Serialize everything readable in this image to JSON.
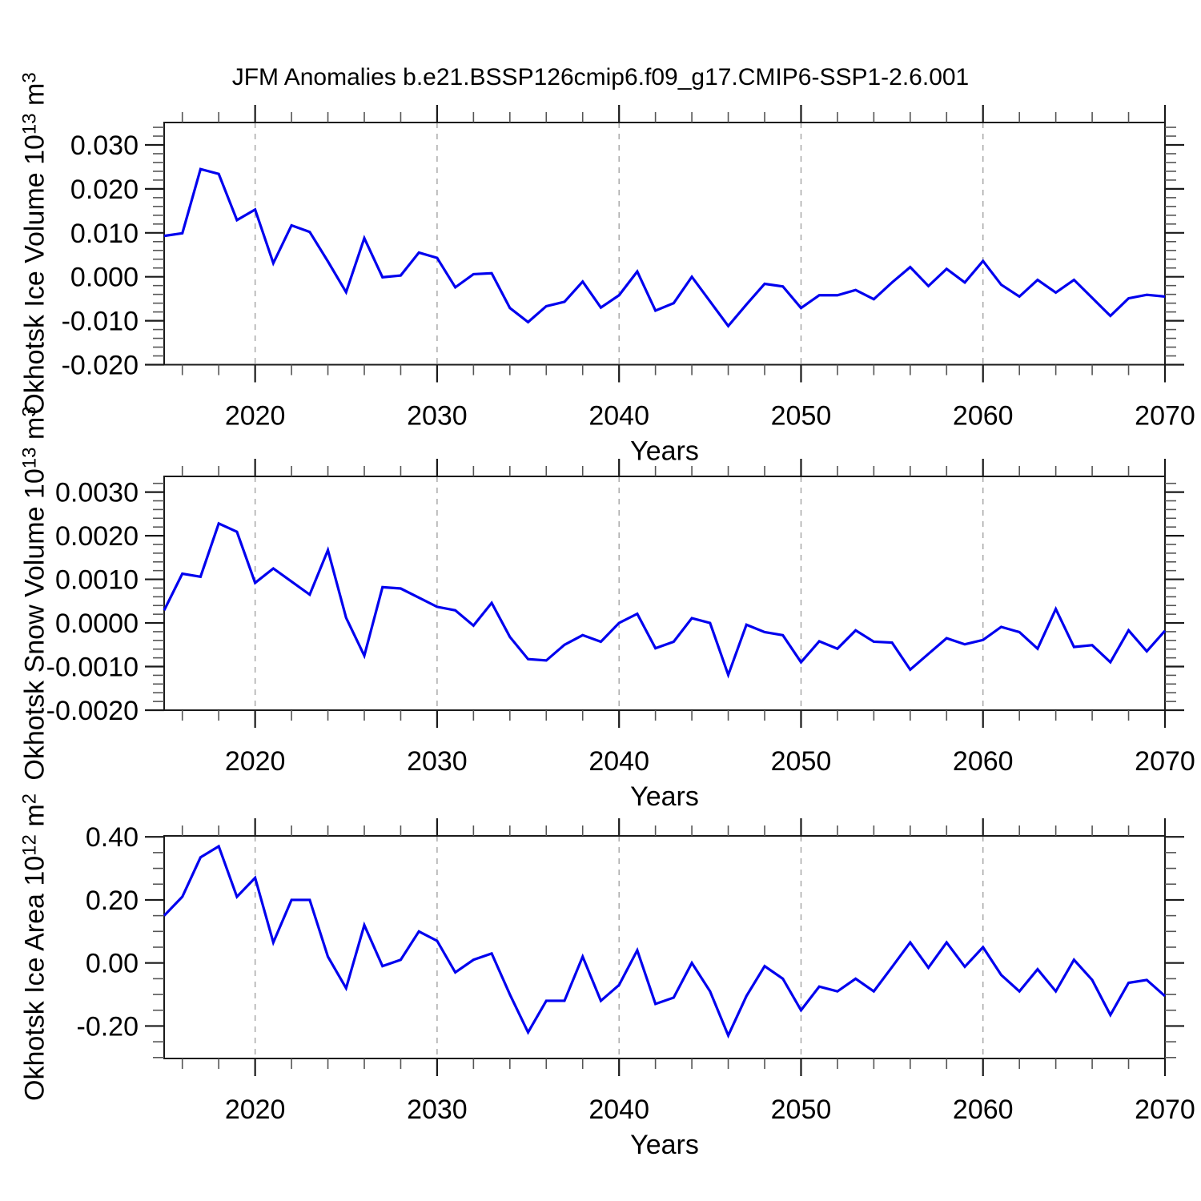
{
  "title": "JFM Anomalies b.e21.BSSP126cmip6.f09_g17.CMIP6-SSP1-2.6.001",
  "colors": {
    "line": "#0000EE",
    "grid": "#A3A3A3",
    "frame": "#1A1A1A",
    "minor_tick": "#555555",
    "text": "#000000"
  },
  "x_axis": {
    "label": "Years",
    "range": [
      2015,
      2070
    ],
    "major_ticks": [
      2020,
      2030,
      2040,
      2050,
      2060,
      2070
    ],
    "minor_step": 2,
    "grid_years": [
      2020,
      2030,
      2040,
      2050,
      2060
    ]
  },
  "chart_data": [
    {
      "type": "line",
      "id": "okhotsk-ice-volume",
      "ylabel": "Okhotsk Ice Volume 10^13 m^3",
      "label_parts": {
        "main": "Okhotsk Ice Volume 10",
        "exp": "13",
        "unit": " m",
        "unit_exp": "3"
      },
      "xlabel": "Years",
      "x_start": 2015,
      "x_end": 2070,
      "x_step": 1,
      "ylim": [
        -0.02,
        0.0351
      ],
      "yticks": [
        0.03,
        0.02,
        0.01,
        0.0,
        -0.01,
        -0.02
      ],
      "ytick_labels": [
        "0.030",
        "0.020",
        "0.010",
        "0.000",
        "-0.010",
        "-0.020"
      ],
      "yminor_step": 0.002,
      "values": [
        0.0093,
        0.0099,
        0.0245,
        0.0234,
        0.0129,
        0.0153,
        0.0031,
        0.0117,
        0.0102,
        0.0035,
        -0.0035,
        0.0088,
        -0.0001,
        0.0003,
        0.0055,
        0.0043,
        -0.0024,
        0.0006,
        0.0008,
        -0.0071,
        -0.0103,
        -0.0067,
        -0.0057,
        -0.0011,
        -0.007,
        -0.0042,
        0.0012,
        -0.0077,
        -0.006,
        0.0,
        -0.0056,
        -0.0112,
        -0.0063,
        -0.0016,
        -0.0022,
        -0.0071,
        -0.0042,
        -0.0042,
        -0.003,
        -0.0051,
        -0.0013,
        0.0022,
        -0.0021,
        0.0018,
        -0.0013,
        0.0036,
        -0.0018,
        -0.0045,
        -0.0007,
        -0.0036,
        -0.0007,
        -0.0048,
        -0.0089,
        -0.0049,
        -0.0041,
        -0.0045
      ]
    },
    {
      "type": "line",
      "id": "okhotsk-snow-volume",
      "ylabel": "Okhotsk Snow Volume 10^13 m^3",
      "label_parts": {
        "main": "Okhotsk Snow Volume 10",
        "exp": "13",
        "unit": " m",
        "unit_exp": "3"
      },
      "xlabel": "Years",
      "x_start": 2015,
      "x_end": 2070,
      "x_step": 1,
      "ylim": [
        -0.002,
        0.00336
      ],
      "yticks": [
        0.003,
        0.002,
        0.001,
        0.0,
        -0.001,
        -0.002
      ],
      "ytick_labels": [
        "0.0030",
        "0.0020",
        "0.0010",
        "0.0000",
        "-0.0010",
        "-0.0020"
      ],
      "yminor_step": 0.0002,
      "values": [
        0.00029,
        0.00113,
        0.00106,
        0.00228,
        0.00209,
        0.00092,
        0.00125,
        0.00095,
        0.00065,
        0.00167,
        0.00012,
        -0.00075,
        0.00082,
        0.00079,
        0.00058,
        0.00037,
        0.00029,
        -6e-05,
        0.00046,
        -0.00032,
        -0.00083,
        -0.00086,
        -0.0005,
        -0.00028,
        -0.00043,
        0.0,
        0.00021,
        -0.00058,
        -0.00043,
        0.00011,
        0.0,
        -0.00119,
        -4e-05,
        -0.00021,
        -0.00028,
        -0.0009,
        -0.00042,
        -0.00059,
        -0.00017,
        -0.00043,
        -0.00045,
        -0.00107,
        -0.00071,
        -0.00035,
        -0.00049,
        -0.00039,
        -9e-05,
        -0.00021,
        -0.00059,
        0.00032,
        -0.00055,
        -0.00051,
        -0.0009,
        -0.00017,
        -0.00065,
        -0.00018
      ]
    },
    {
      "type": "line",
      "id": "okhotsk-ice-area",
      "ylabel": "Okhotsk Ice Area 10^12 m^2",
      "label_parts": {
        "main": "Okhotsk Ice Area 10",
        "exp": "12",
        "unit": " m",
        "unit_exp": "2"
      },
      "xlabel": "Years",
      "x_start": 2015,
      "x_end": 2070,
      "x_step": 1,
      "ylim": [
        -0.303,
        0.403
      ],
      "yticks": [
        0.4,
        0.2,
        0.0,
        -0.2
      ],
      "ytick_labels": [
        "0.40",
        "0.20",
        "0.00",
        "-0.20"
      ],
      "yminor_step": 0.05,
      "values": [
        0.15,
        0.21,
        0.335,
        0.37,
        0.21,
        0.27,
        0.065,
        0.2,
        0.2,
        0.02,
        -0.08,
        0.12,
        -0.01,
        0.01,
        0.1,
        0.07,
        -0.03,
        0.01,
        0.03,
        -0.1,
        -0.22,
        -0.12,
        -0.12,
        0.02,
        -0.12,
        -0.07,
        0.04,
        -0.13,
        -0.11,
        0.0,
        -0.09,
        -0.23,
        -0.105,
        -0.01,
        -0.05,
        -0.15,
        -0.075,
        -0.09,
        -0.05,
        -0.09,
        -0.013,
        0.065,
        -0.015,
        0.065,
        -0.012,
        0.05,
        -0.038,
        -0.09,
        -0.02,
        -0.09,
        0.01,
        -0.054,
        -0.165,
        -0.063,
        -0.054,
        -0.105
      ]
    }
  ]
}
